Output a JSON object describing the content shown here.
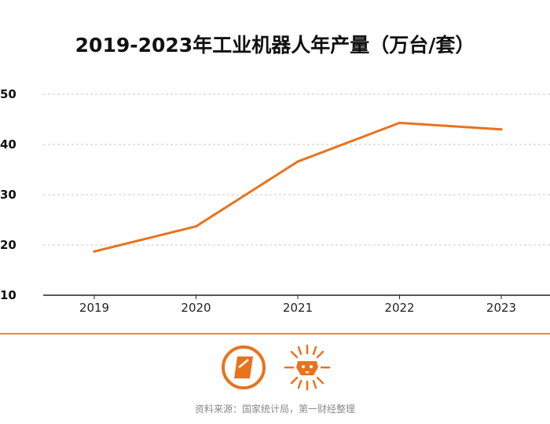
{
  "chart_data": {
    "type": "line",
    "title": "2019-2023年工业机器人年产量（万台/套）",
    "categories": [
      "2019",
      "2020",
      "2021",
      "2022",
      "2023"
    ],
    "series": [
      {
        "name": "工业机器人年产量",
        "values": [
          18.7,
          23.7,
          36.6,
          44.3,
          43.0
        ]
      }
    ],
    "ylim": [
      10,
      50
    ],
    "yticks": [
      10,
      20,
      30,
      40,
      50
    ],
    "ytick_labels": [
      "10",
      "20",
      "30",
      "40",
      "50"
    ],
    "xlabel": "",
    "ylabel": "",
    "grid": true,
    "line_color": "#e8731e",
    "legend": "none"
  },
  "footer": {
    "source": "资料来源：国家统计局，第一财经整理"
  },
  "colors": {
    "accent": "#e8731e",
    "divider": "#e8893f",
    "grid": "#c8c8c8"
  },
  "logos": {
    "left": "yicai-logo-icon",
    "right": "sun-lion-logo-icon"
  }
}
